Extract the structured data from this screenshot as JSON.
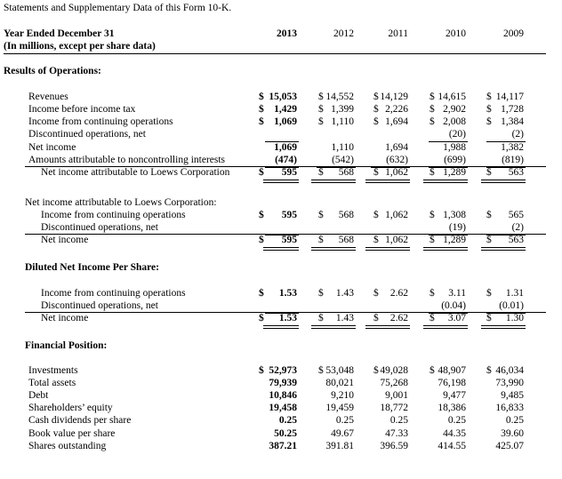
{
  "intro": "Statements and Supplementary Data of this Form 10-K.",
  "header": {
    "title": "Year Ended December 31",
    "subtitle": "(In millions, except per share data)",
    "years": [
      "2013",
      "2012",
      "2011",
      "2010",
      "2009"
    ]
  },
  "sections": {
    "results": "Results of Operations:",
    "ni_attr": "Net income attributable to Loews Corporation:",
    "diluted": "Diluted Net Income Per Share:",
    "financial": "Financial Position:"
  },
  "dollar": "$",
  "rows": {
    "revenues": {
      "label": "Revenues",
      "v": [
        "15,053",
        "14,552",
        "14,129",
        "14,615",
        "14,117"
      ]
    },
    "income_before_tax": {
      "label": "Income before income tax",
      "v": [
        "1,429",
        "1,399",
        "2,226",
        "2,902",
        "1,728"
      ]
    },
    "income_cont_ops": {
      "label": "Income from continuing operations",
      "v": [
        "1,069",
        "1,110",
        "1,694",
        "2,008",
        "1,384"
      ]
    },
    "discontinued": {
      "label": "Discontinued operations, net",
      "v": [
        "",
        "",
        "",
        "(20)",
        "(2)"
      ]
    },
    "net_income": {
      "label": "Net income",
      "v": [
        "1,069",
        "1,110",
        "1,694",
        "1,988",
        "1,382"
      ]
    },
    "noncontrolling": {
      "label": "Amounts attributable to noncontrolling interests",
      "v": [
        "(474)",
        "(542)",
        "(632)",
        "(699)",
        "(819)"
      ]
    },
    "ni_loews": {
      "label": "Net income attributable to Loews Corporation",
      "v": [
        "595",
        "568",
        "1,062",
        "1,289",
        "563"
      ]
    },
    "attr_cont_ops": {
      "label": "Income from continuing operations",
      "v": [
        "595",
        "568",
        "1,062",
        "1,308",
        "565"
      ]
    },
    "attr_discontinued": {
      "label": "Discontinued operations, net",
      "v": [
        "",
        "",
        "",
        "(19)",
        "(2)"
      ]
    },
    "attr_net_income": {
      "label": "Net income",
      "v": [
        "595",
        "568",
        "1,062",
        "1,289",
        "563"
      ]
    },
    "dil_cont_ops": {
      "label": "Income from continuing operations",
      "v": [
        "1.53",
        "1.43",
        "2.62",
        "3.11",
        "1.31"
      ]
    },
    "dil_discontinued": {
      "label": "Discontinued operations, net",
      "v": [
        "",
        "",
        "",
        "(0.04)",
        "(0.01)"
      ]
    },
    "dil_net_income": {
      "label": "Net income",
      "v": [
        "1.53",
        "1.43",
        "2.62",
        "3.07",
        "1.30"
      ]
    },
    "investments": {
      "label": "Investments",
      "v": [
        "52,973",
        "53,048",
        "49,028",
        "48,907",
        "46,034"
      ]
    },
    "total_assets": {
      "label": "Total assets",
      "v": [
        "79,939",
        "80,021",
        "75,268",
        "76,198",
        "73,990"
      ]
    },
    "debt": {
      "label": "Debt",
      "v": [
        "10,846",
        "9,210",
        "9,001",
        "9,477",
        "9,485"
      ]
    },
    "equity": {
      "label": "Shareholders’ equity",
      "v": [
        "19,458",
        "19,459",
        "18,772",
        "18,386",
        "16,833"
      ]
    },
    "dividends": {
      "label": "Cash dividends per share",
      "v": [
        "0.25",
        "0.25",
        "0.25",
        "0.25",
        "0.25"
      ]
    },
    "book_value": {
      "label": "Book value per share",
      "v": [
        "50.25",
        "49.67",
        "47.33",
        "44.35",
        "39.60"
      ]
    },
    "shares": {
      "label": "Shares outstanding",
      "v": [
        "387.21",
        "391.81",
        "396.59",
        "414.55",
        "425.07"
      ]
    }
  }
}
